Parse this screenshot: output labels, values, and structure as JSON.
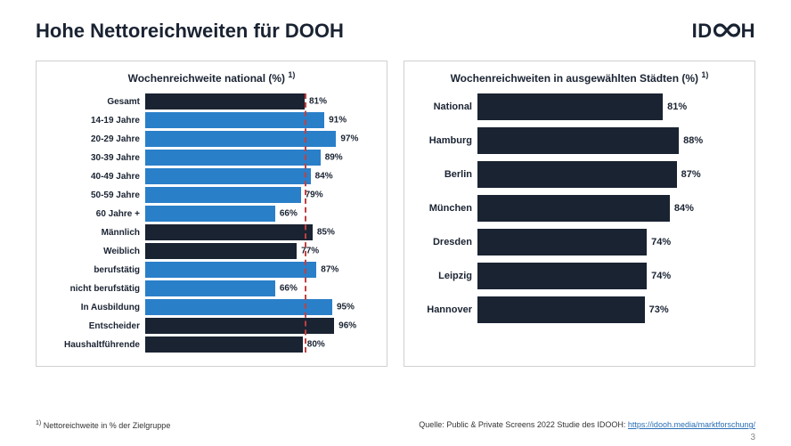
{
  "title": "Hohe Nettoreichweiten für DOOH",
  "logo": {
    "prefix": "ID",
    "suffix": "H"
  },
  "left_chart": {
    "title": "Wochenreichweite national (%)",
    "title_sup": "1)",
    "xlim": 100,
    "reference_line": 81,
    "reference_color": "#c04040",
    "bars": [
      {
        "label": "Gesamt",
        "value": 81,
        "color": "#1a2332"
      },
      {
        "label": "14-19 Jahre",
        "value": 91,
        "color": "#2a7fc9"
      },
      {
        "label": "20-29 Jahre",
        "value": 97,
        "color": "#2a7fc9"
      },
      {
        "label": "30-39 Jahre",
        "value": 89,
        "color": "#2a7fc9"
      },
      {
        "label": "40-49 Jahre",
        "value": 84,
        "color": "#2a7fc9"
      },
      {
        "label": "50-59 Jahre",
        "value": 79,
        "color": "#2a7fc9"
      },
      {
        "label": "60 Jahre +",
        "value": 66,
        "color": "#2a7fc9"
      },
      {
        "label": "Männlich",
        "value": 85,
        "color": "#1a2332"
      },
      {
        "label": "Weiblich",
        "value": 77,
        "color": "#1a2332"
      },
      {
        "label": "berufstätig",
        "value": 87,
        "color": "#2a7fc9"
      },
      {
        "label": "nicht berufstätig",
        "value": 66,
        "color": "#2a7fc9"
      },
      {
        "label": "In Ausbildung",
        "value": 95,
        "color": "#2a7fc9"
      },
      {
        "label": "Entscheider",
        "value": 96,
        "color": "#1a2332"
      },
      {
        "label": "Haushaltführende",
        "value": 80,
        "color": "#1a2332"
      }
    ]
  },
  "right_chart": {
    "title": "Wochenreichweiten in ausgewählten Städten (%)",
    "title_sup": "1)",
    "xlim": 100,
    "bars": [
      {
        "label": "National",
        "value": 81,
        "color": "#1a2332"
      },
      {
        "label": "Hamburg",
        "value": 88,
        "color": "#1a2332"
      },
      {
        "label": "Berlin",
        "value": 87,
        "color": "#1a2332"
      },
      {
        "label": "München",
        "value": 84,
        "color": "#1a2332"
      },
      {
        "label": "Dresden",
        "value": 74,
        "color": "#1a2332"
      },
      {
        "label": "Leipzig",
        "value": 74,
        "color": "#1a2332"
      },
      {
        "label": "Hannover",
        "value": 73,
        "color": "#1a2332"
      }
    ]
  },
  "footnote": {
    "sup": "1)",
    "text": "Nettoreichweite in % der Zielgruppe"
  },
  "source": {
    "prefix": "Quelle: Public & Private Screens 2022 Studie des IDOOH:  ",
    "link_text": "https://idooh.media/marktforschung/"
  },
  "page_number": "3",
  "colors": {
    "text": "#1a2332",
    "brand_blue": "#2a7fc9",
    "panel_border": "#d0d0d0",
    "link": "#2a6fb5",
    "background": "#ffffff"
  }
}
